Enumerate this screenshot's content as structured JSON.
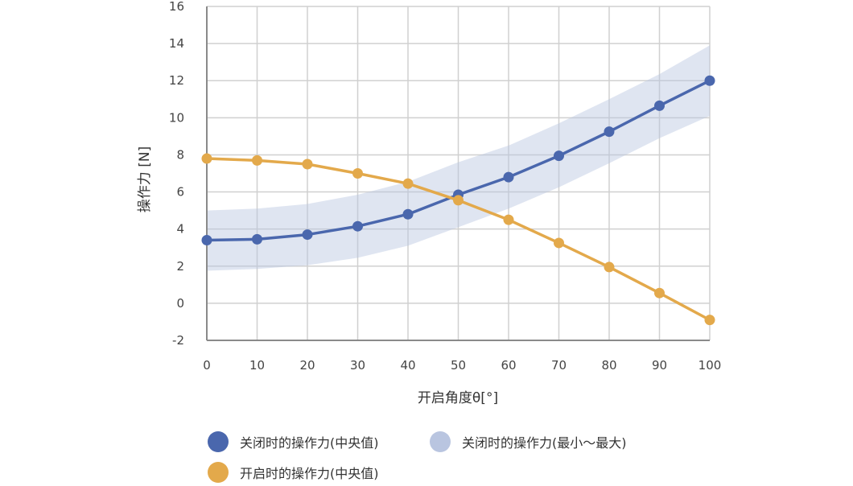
{
  "chart_data": {
    "type": "line",
    "xlabel": "开启角度θ[°]",
    "ylabel": "操作力 [N]",
    "xlim": [
      0,
      100
    ],
    "ylim": [
      -2,
      16
    ],
    "x_ticks": [
      0,
      10,
      20,
      30,
      40,
      50,
      60,
      70,
      80,
      90,
      100
    ],
    "y_ticks": [
      -2,
      0,
      2,
      4,
      6,
      8,
      10,
      12,
      14,
      16
    ],
    "grid": true,
    "legend_position": "bottom",
    "x": [
      0,
      10,
      20,
      30,
      40,
      50,
      60,
      70,
      80,
      90,
      100
    ],
    "series": [
      {
        "name": "关闭时的操作力(中央值)",
        "color": "#4a67ad",
        "values": [
          3.4,
          3.45,
          3.7,
          4.15,
          4.8,
          5.85,
          6.8,
          7.95,
          9.25,
          10.65,
          12.0
        ]
      },
      {
        "name": "开启时的操作力(中央值)",
        "color": "#e3a94b",
        "values": [
          7.8,
          7.7,
          7.5,
          7.0,
          6.45,
          5.55,
          4.5,
          3.25,
          1.95,
          0.55,
          -0.9
        ]
      }
    ],
    "band": {
      "name": "关闭时的操作力(最小〜最大)",
      "color": "#b9c5e0",
      "x": [
        0,
        10,
        20,
        30,
        40,
        50,
        60,
        70,
        80,
        90,
        100
      ],
      "upper": [
        5.0,
        5.1,
        5.35,
        5.85,
        6.55,
        7.6,
        8.5,
        9.7,
        11.0,
        12.35,
        13.9
      ],
      "lower": [
        1.75,
        1.85,
        2.05,
        2.45,
        3.1,
        4.1,
        5.1,
        6.25,
        7.55,
        8.9,
        10.1
      ]
    }
  }
}
